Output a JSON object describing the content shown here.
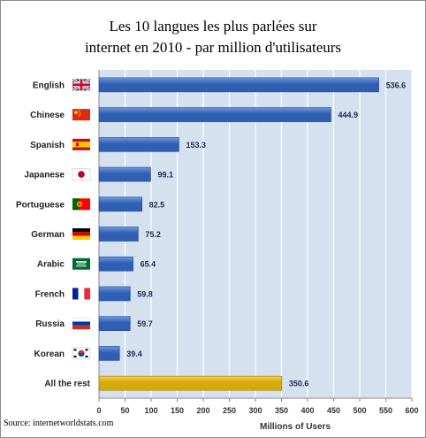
{
  "chart_data": {
    "type": "bar",
    "orientation": "horizontal",
    "title_line1": "Les 10 langues les plus parlées sur",
    "title_line2": "internet en 2010 - par million d'utilisateurs",
    "xlabel": "Millions of Users",
    "xlim": [
      0,
      600
    ],
    "xticks": [
      "0",
      "50",
      "100",
      "150",
      "200",
      "250",
      "300",
      "350",
      "400",
      "450",
      "500",
      "550",
      "600"
    ],
    "grid": true,
    "categories": [
      "English",
      "Chinese",
      "Spanish",
      "Japanese",
      "Portuguese",
      "German",
      "Arabic",
      "French",
      "Russia",
      "Korean",
      "All the rest"
    ],
    "values": [
      536.6,
      444.9,
      153.3,
      99.1,
      82.5,
      75.2,
      65.4,
      59.8,
      59.7,
      39.4,
      350.6
    ],
    "value_labels": [
      "536.6",
      "444.9",
      "153.3",
      "99.1",
      "82.5",
      "75.2",
      "65.4",
      "59.8",
      "59.7",
      "39.4",
      "350.6"
    ],
    "flag_icons": [
      "uk-flag-icon",
      "china-flag-icon",
      "spain-flag-icon",
      "japan-flag-icon",
      "portugal-flag-icon",
      "germany-flag-icon",
      "saudi-arabia-flag-icon",
      "france-flag-icon",
      "russia-flag-icon",
      "south-korea-flag-icon",
      ""
    ],
    "colors": {
      "bar_main": "#2f5fb3",
      "bar_main_light": "#6f97dc",
      "bar_highlight": "#d6a90a",
      "bar_highlight_light": "#f3d24a",
      "plot_bg": "#d5e1ef",
      "grid": "#ffffff",
      "axis": "#8a8a8a"
    }
  },
  "source": "Source: internetworldstats.com"
}
